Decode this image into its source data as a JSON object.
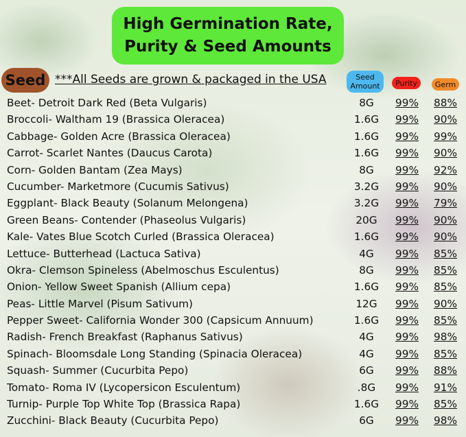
{
  "title": {
    "line1": "High Germination Rate,",
    "line2": "Purity & Seed Amounts"
  },
  "seed_label": "Seed",
  "usa_note": "***All Seeds are grown & packaged in the USA",
  "headers": {
    "amount_line1": "Seed",
    "amount_line2": "Amount",
    "purity": "Purity",
    "germ": "Germ"
  },
  "colors": {
    "title_bg": "#5ee83a",
    "seed_badge": "#a0532b",
    "amount_header": "#4cb8ee",
    "purity_header": "#f2221a",
    "germ_header": "#f28a2a"
  },
  "rows": [
    {
      "name": "Beet- Detroit Dark Red (Beta Vulgaris)",
      "amount": "8G",
      "purity": "99%",
      "germ": "88%"
    },
    {
      "name": "Broccoli- Waltham 19 (Brassica Oleracea)",
      "amount": "1.6G",
      "purity": "99%",
      "germ": "90%"
    },
    {
      "name": "Cabbage- Golden Acre (Brassica Oleracea)",
      "amount": "1.6G",
      "purity": "99%",
      "germ": "99%"
    },
    {
      "name": "Carrot- Scarlet Nantes (Daucus Carota)",
      "amount": "1.6G",
      "purity": "99%",
      "germ": "90%"
    },
    {
      "name": "Corn- Golden Bantam (Zea Mays)",
      "amount": "8G",
      "purity": "99%",
      "germ": "92%"
    },
    {
      "name": "Cucumber- Marketmore (Cucumis Sativus)",
      "amount": "3.2G",
      "purity": "99%",
      "germ": "90%"
    },
    {
      "name": "Eggplant- Black Beauty (Solanum Melongena)",
      "amount": "3.2G",
      "purity": "99%",
      "germ": "79%"
    },
    {
      "name": "Green Beans- Contender (Phaseolus Vulgaris)",
      "amount": "20G",
      "purity": "99%",
      "germ": "90%"
    },
    {
      "name": "Kale- Vates Blue Scotch Curled (Brassica Oleracea)",
      "amount": "1.6G",
      "purity": "99%",
      "germ": "90%"
    },
    {
      "name": "Lettuce- Butterhead (Lactuca Sativa)",
      "amount": "4G",
      "purity": "99%",
      "germ": "85%"
    },
    {
      "name": "Okra- Clemson Spineless (Abelmoschus Esculentus)",
      "amount": "8G",
      "purity": "99%",
      "germ": "85%"
    },
    {
      "name": "Onion- Yellow Sweet Spanish (Allium cepa)",
      "amount": "1.6G",
      "purity": "99%",
      "germ": "85%"
    },
    {
      "name": "Peas- Little Marvel (Pisum Sativum)",
      "amount": "12G",
      "purity": "99%",
      "germ": "90%"
    },
    {
      "name": "Pepper Sweet- California Wonder 300 (Capsicum Annuum)",
      "amount": "1.6G",
      "purity": "99%",
      "germ": "85%"
    },
    {
      "name": "Radish- French Breakfast (Raphanus Sativus)",
      "amount": "4G",
      "purity": "99%",
      "germ": "98%"
    },
    {
      "name": "Spinach- Bloomsdale Long Standing (Spinacia Oleracea)",
      "amount": "4G",
      "purity": "99%",
      "germ": "85%"
    },
    {
      "name": "Squash- Summer (Cucurbita Pepo)",
      "amount": "6G",
      "purity": "99%",
      "germ": "88%"
    },
    {
      "name": "Tomato- Roma IV (Lycopersicon Esculentum)",
      "amount": ".8G",
      "purity": "99%",
      "germ": "91%"
    },
    {
      "name": "Turnip- Purple Top White Top (Brassica Rapa)",
      "amount": "1.6G",
      "purity": "99%",
      "germ": "85%"
    },
    {
      "name": "Zucchini- Black Beauty (Cucurbita Pepo)",
      "amount": "6G",
      "purity": "99%",
      "germ": "98%"
    }
  ]
}
